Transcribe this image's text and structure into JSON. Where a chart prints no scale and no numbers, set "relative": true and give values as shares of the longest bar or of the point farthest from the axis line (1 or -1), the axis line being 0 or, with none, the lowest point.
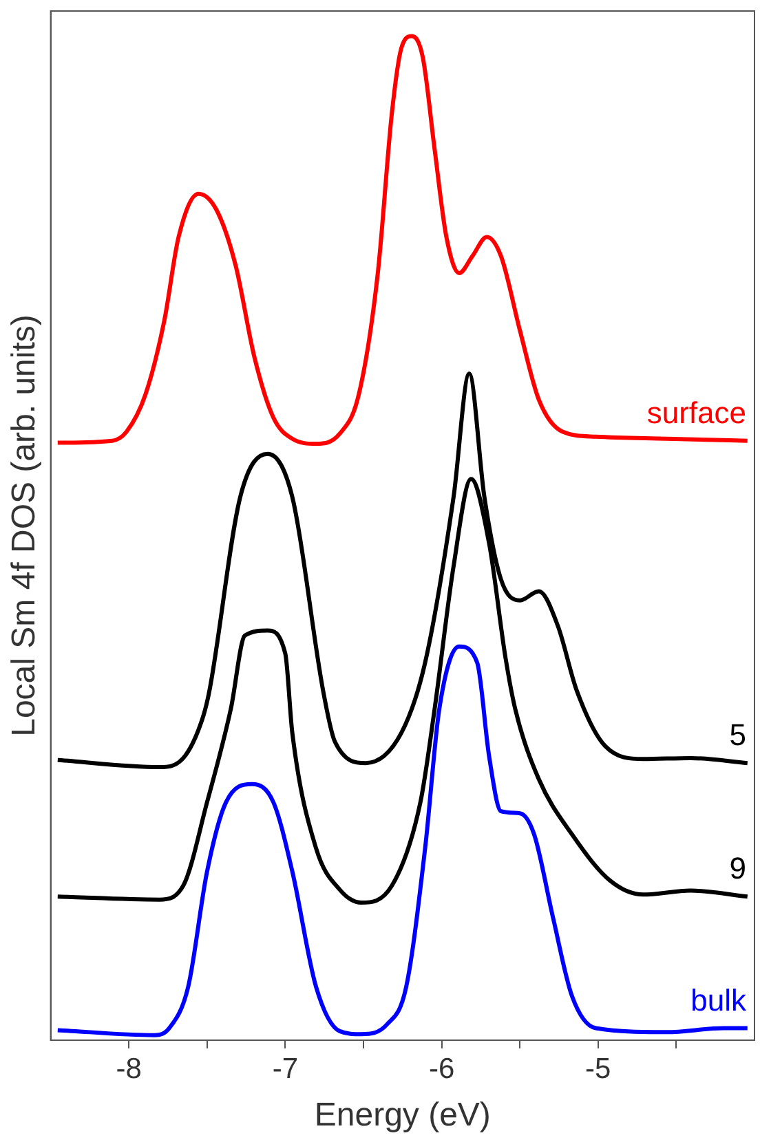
{
  "chart_data": {
    "type": "line",
    "xlabel": "Energy (eV)",
    "ylabel": "Local Sm 4f DOS (arb. units)",
    "relative": true,
    "xlim": [
      -8.5,
      -4
    ],
    "xticks": [
      -8,
      {
        "value": -7.5,
        "label": null
      },
      -7,
      {
        "value": -6.5,
        "label": null
      },
      -6,
      {
        "value": -5.5,
        "label": null
      },
      -5,
      {
        "value": -4.5,
        "label": null
      }
    ],
    "tick_labels": "x",
    "legend": false,
    "grid": false,
    "marker": "none",
    "line_style": "solid",
    "series": [
      {
        "name": "surface",
        "color": "#ff0000",
        "x": [
          -8.455,
          -8.106,
          -8.015,
          -7.894,
          -7.773,
          -7.682,
          -7.555,
          -7.44,
          -7.318,
          -7.197,
          -7.076,
          -6.955,
          -6.803,
          -6.652,
          -6.53,
          -6.409,
          -6.318,
          -6.258,
          -6.191,
          -6.121,
          -6.045,
          -5.97,
          -5.888,
          -5.803,
          -5.712,
          -5.621,
          -5.5,
          -5.379,
          -5.227,
          -5.015,
          -4.561,
          -4.045
        ],
        "values": [
          0.595,
          0.597,
          0.606,
          0.643,
          0.717,
          0.8,
          0.843,
          0.827,
          0.772,
          0.68,
          0.62,
          0.599,
          0.594,
          0.604,
          0.643,
          0.763,
          0.924,
          0.988,
          1.0,
          0.979,
          0.887,
          0.8,
          0.764,
          0.781,
          0.8,
          0.781,
          0.707,
          0.638,
          0.606,
          0.601,
          0.599,
          0.597
        ]
      },
      {
        "name": "5",
        "color": "#000000",
        "x": [
          -8.455,
          -7.803,
          -7.652,
          -7.53,
          -7.485,
          -7.288,
          -7.112,
          -6.955,
          -6.758,
          -6.682,
          -6.485,
          -6.258,
          -6.106,
          -5.924,
          -5.824,
          -5.727,
          -5.621,
          -5.5,
          -5.379,
          -5.258,
          -5.136,
          -4.955,
          -4.712,
          -4.409,
          -4.045
        ],
        "values": [
          0.279,
          0.272,
          0.281,
          0.32,
          0.348,
          0.541,
          0.584,
          0.541,
          0.348,
          0.297,
          0.276,
          0.306,
          0.376,
          0.541,
          0.664,
          0.541,
          0.459,
          0.438,
          0.447,
          0.413,
          0.348,
          0.293,
          0.28,
          0.281,
          0.276
        ]
      },
      {
        "name": "9",
        "color": "#000000",
        "x": [
          -8.455,
          -7.803,
          -7.652,
          -7.5,
          -7.348,
          -7.258,
          -7.112,
          -7.0,
          -6.955,
          -6.803,
          -6.652,
          -6.515,
          -6.318,
          -6.136,
          -6.045,
          -5.924,
          -5.812,
          -5.697,
          -5.591,
          -5.53,
          -5.379,
          -5.167,
          -4.924,
          -4.712,
          -4.409,
          -4.045
        ],
        "values": [
          0.143,
          0.14,
          0.154,
          0.237,
          0.33,
          0.403,
          0.408,
          0.385,
          0.306,
          0.191,
          0.15,
          0.137,
          0.154,
          0.237,
          0.33,
          0.472,
          0.559,
          0.495,
          0.38,
          0.33,
          0.26,
          0.205,
          0.159,
          0.145,
          0.149,
          0.143
        ]
      },
      {
        "name": "bulk",
        "color": "#0000ff",
        "x": [
          -8.455,
          -7.833,
          -7.742,
          -7.621,
          -7.5,
          -7.379,
          -7.212,
          -7.076,
          -6.955,
          -6.803,
          -6.652,
          -6.515,
          -6.348,
          -6.227,
          -6.106,
          -6.015,
          -5.888,
          -5.773,
          -5.697,
          -5.621,
          -5.5,
          -5.409,
          -5.288,
          -5.167,
          -5.015,
          -4.561,
          -4.197,
          -4.045
        ],
        "values": [
          0.01,
          0.005,
          0.012,
          0.053,
          0.168,
          0.237,
          0.255,
          0.237,
          0.168,
          0.053,
          0.009,
          0.006,
          0.016,
          0.053,
          0.191,
          0.33,
          0.392,
          0.376,
          0.283,
          0.228,
          0.226,
          0.205,
          0.122,
          0.044,
          0.012,
          0.008,
          0.012,
          0.012
        ]
      }
    ]
  }
}
